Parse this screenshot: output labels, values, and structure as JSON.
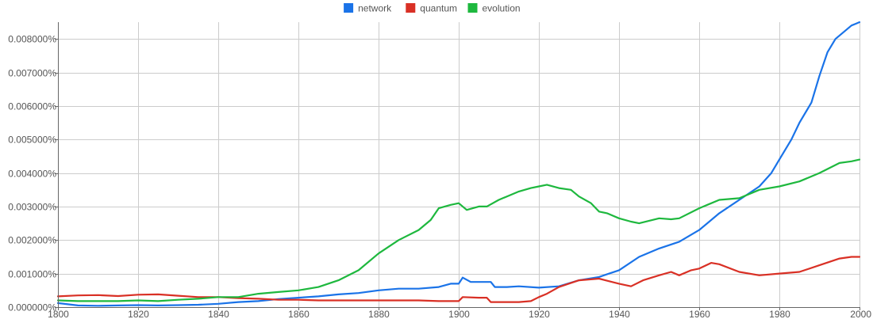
{
  "chart_data": {
    "type": "line",
    "title": "",
    "xlabel": "",
    "ylabel": "",
    "xlim": [
      1800,
      2000
    ],
    "ylim": [
      0,
      0.0085
    ],
    "grid": true,
    "legend_position": "top-center",
    "x_ticks": [
      {
        "value": 1800,
        "label": "1800"
      },
      {
        "value": 1820,
        "label": "1820"
      },
      {
        "value": 1840,
        "label": "1840"
      },
      {
        "value": 1860,
        "label": "1860"
      },
      {
        "value": 1880,
        "label": "1880"
      },
      {
        "value": 1900,
        "label": "1900"
      },
      {
        "value": 1920,
        "label": "1920"
      },
      {
        "value": 1940,
        "label": "1940"
      },
      {
        "value": 1960,
        "label": "1960"
      },
      {
        "value": 1980,
        "label": "1980"
      },
      {
        "value": 2000,
        "label": "2000"
      }
    ],
    "y_ticks": [
      {
        "value": 0.0,
        "label": "0.000000%"
      },
      {
        "value": 0.001,
        "label": "0.001000%"
      },
      {
        "value": 0.002,
        "label": "0.002000%"
      },
      {
        "value": 0.003,
        "label": "0.003000%"
      },
      {
        "value": 0.004,
        "label": "0.004000%"
      },
      {
        "value": 0.005,
        "label": "0.005000%"
      },
      {
        "value": 0.006,
        "label": "0.006000%"
      },
      {
        "value": 0.007,
        "label": "0.007000%"
      },
      {
        "value": 0.008,
        "label": "0.008000%"
      }
    ],
    "series": [
      {
        "name": "network",
        "color": "#1a73e8",
        "points": [
          [
            1800,
            0.00012
          ],
          [
            1805,
            5e-05
          ],
          [
            1810,
            4e-05
          ],
          [
            1815,
            5e-05
          ],
          [
            1820,
            6e-05
          ],
          [
            1825,
            5e-05
          ],
          [
            1830,
            6e-05
          ],
          [
            1835,
            7e-05
          ],
          [
            1840,
            0.0001
          ],
          [
            1845,
            0.00015
          ],
          [
            1850,
            0.00018
          ],
          [
            1855,
            0.00024
          ],
          [
            1860,
            0.00028
          ],
          [
            1865,
            0.00032
          ],
          [
            1870,
            0.00038
          ],
          [
            1875,
            0.00042
          ],
          [
            1880,
            0.0005
          ],
          [
            1885,
            0.00055
          ],
          [
            1890,
            0.00055
          ],
          [
            1895,
            0.0006
          ],
          [
            1898,
            0.0007
          ],
          [
            1900,
            0.0007
          ],
          [
            1901,
            0.00088
          ],
          [
            1903,
            0.00075
          ],
          [
            1906,
            0.00075
          ],
          [
            1908,
            0.00075
          ],
          [
            1909,
            0.0006
          ],
          [
            1912,
            0.0006
          ],
          [
            1915,
            0.00062
          ],
          [
            1920,
            0.00058
          ],
          [
            1925,
            0.00062
          ],
          [
            1930,
            0.0008
          ],
          [
            1935,
            0.0009
          ],
          [
            1940,
            0.0011
          ],
          [
            1945,
            0.0015
          ],
          [
            1950,
            0.00175
          ],
          [
            1955,
            0.00195
          ],
          [
            1960,
            0.0023
          ],
          [
            1965,
            0.0028
          ],
          [
            1970,
            0.0032
          ],
          [
            1975,
            0.0036
          ],
          [
            1978,
            0.004
          ],
          [
            1980,
            0.0044
          ],
          [
            1983,
            0.005
          ],
          [
            1985,
            0.0055
          ],
          [
            1988,
            0.0061
          ],
          [
            1990,
            0.0069
          ],
          [
            1992,
            0.0076
          ],
          [
            1994,
            0.008
          ],
          [
            1996,
            0.0082
          ],
          [
            1998,
            0.0084
          ],
          [
            1999,
            0.00845
          ],
          [
            2000,
            0.0085
          ]
        ]
      },
      {
        "name": "quantum",
        "color": "#d93025",
        "points": [
          [
            1800,
            0.00032
          ],
          [
            1805,
            0.00035
          ],
          [
            1810,
            0.00036
          ],
          [
            1815,
            0.00033
          ],
          [
            1820,
            0.00037
          ],
          [
            1825,
            0.00038
          ],
          [
            1830,
            0.00034
          ],
          [
            1835,
            0.0003
          ],
          [
            1840,
            0.0003
          ],
          [
            1845,
            0.00027
          ],
          [
            1850,
            0.00025
          ],
          [
            1855,
            0.00022
          ],
          [
            1860,
            0.00022
          ],
          [
            1865,
            0.0002
          ],
          [
            1870,
            0.0002
          ],
          [
            1875,
            0.0002
          ],
          [
            1880,
            0.0002
          ],
          [
            1885,
            0.0002
          ],
          [
            1890,
            0.0002
          ],
          [
            1895,
            0.00018
          ],
          [
            1900,
            0.00018
          ],
          [
            1901,
            0.0003
          ],
          [
            1905,
            0.00028
          ],
          [
            1907,
            0.00028
          ],
          [
            1908,
            0.00015
          ],
          [
            1912,
            0.00015
          ],
          [
            1915,
            0.00015
          ],
          [
            1918,
            0.00018
          ],
          [
            1920,
            0.0003
          ],
          [
            1922,
            0.0004
          ],
          [
            1925,
            0.0006
          ],
          [
            1930,
            0.0008
          ],
          [
            1935,
            0.00085
          ],
          [
            1940,
            0.0007
          ],
          [
            1943,
            0.00062
          ],
          [
            1946,
            0.0008
          ],
          [
            1950,
            0.00095
          ],
          [
            1953,
            0.00105
          ],
          [
            1955,
            0.00095
          ],
          [
            1958,
            0.0011
          ],
          [
            1960,
            0.00115
          ],
          [
            1963,
            0.00132
          ],
          [
            1965,
            0.00128
          ],
          [
            1970,
            0.00105
          ],
          [
            1975,
            0.00095
          ],
          [
            1980,
            0.001
          ],
          [
            1985,
            0.00105
          ],
          [
            1990,
            0.00125
          ],
          [
            1995,
            0.00145
          ],
          [
            1998,
            0.0015
          ],
          [
            2000,
            0.0015
          ]
        ]
      },
      {
        "name": "evolution",
        "color": "#1eb83e",
        "points": [
          [
            1800,
            0.0002
          ],
          [
            1805,
            0.00018
          ],
          [
            1810,
            0.00018
          ],
          [
            1815,
            0.00018
          ],
          [
            1820,
            0.0002
          ],
          [
            1825,
            0.00018
          ],
          [
            1830,
            0.00022
          ],
          [
            1835,
            0.00025
          ],
          [
            1840,
            0.0003
          ],
          [
            1845,
            0.0003
          ],
          [
            1850,
            0.0004
          ],
          [
            1855,
            0.00045
          ],
          [
            1860,
            0.0005
          ],
          [
            1865,
            0.0006
          ],
          [
            1870,
            0.0008
          ],
          [
            1875,
            0.0011
          ],
          [
            1880,
            0.0016
          ],
          [
            1885,
            0.002
          ],
          [
            1890,
            0.0023
          ],
          [
            1893,
            0.0026
          ],
          [
            1895,
            0.00295
          ],
          [
            1898,
            0.00305
          ],
          [
            1900,
            0.0031
          ],
          [
            1902,
            0.0029
          ],
          [
            1905,
            0.003
          ],
          [
            1907,
            0.003
          ],
          [
            1910,
            0.0032
          ],
          [
            1915,
            0.00345
          ],
          [
            1918,
            0.00355
          ],
          [
            1920,
            0.0036
          ],
          [
            1922,
            0.00365
          ],
          [
            1925,
            0.00355
          ],
          [
            1928,
            0.0035
          ],
          [
            1930,
            0.0033
          ],
          [
            1933,
            0.0031
          ],
          [
            1935,
            0.00285
          ],
          [
            1937,
            0.0028
          ],
          [
            1940,
            0.00265
          ],
          [
            1943,
            0.00255
          ],
          [
            1945,
            0.0025
          ],
          [
            1950,
            0.00265
          ],
          [
            1953,
            0.00262
          ],
          [
            1955,
            0.00265
          ],
          [
            1960,
            0.00295
          ],
          [
            1965,
            0.0032
          ],
          [
            1970,
            0.00325
          ],
          [
            1975,
            0.0035
          ],
          [
            1980,
            0.0036
          ],
          [
            1985,
            0.00375
          ],
          [
            1990,
            0.004
          ],
          [
            1995,
            0.0043
          ],
          [
            1998,
            0.00435
          ],
          [
            2000,
            0.0044
          ]
        ]
      }
    ]
  }
}
